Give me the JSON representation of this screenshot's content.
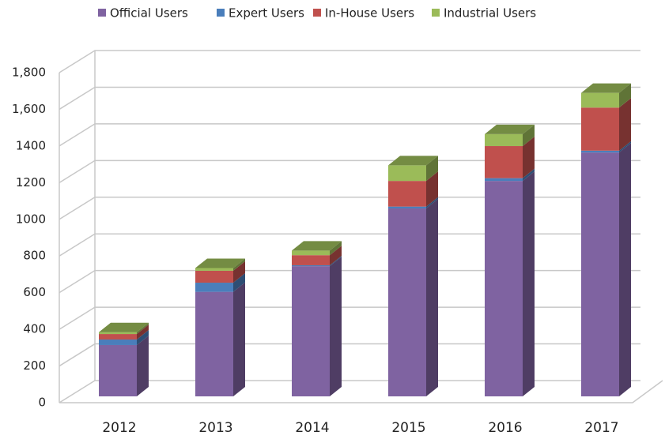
{
  "chart_data": {
    "type": "bar",
    "stacked": true,
    "categories": [
      "2012",
      "2013",
      "2014",
      "2015",
      "2016",
      "2017"
    ],
    "series": [
      {
        "name": "Official Users",
        "color": "#7f63a1",
        "values": [
          280,
          570,
          710,
          1025,
          1175,
          1330
        ]
      },
      {
        "name": "Expert Users",
        "color": "#4a7ebb",
        "values": [
          30,
          50,
          5,
          10,
          15,
          10
        ]
      },
      {
        "name": "In-House Users",
        "color": "#c0504d",
        "values": [
          30,
          65,
          55,
          140,
          175,
          235
        ]
      },
      {
        "name": "Industrial Users",
        "color": "#9bbb59",
        "values": [
          10,
          15,
          25,
          85,
          65,
          80
        ]
      }
    ],
    "ylim": [
      0,
      1800
    ],
    "yticks": [
      0,
      200,
      400,
      600,
      800,
      1000,
      1200,
      1400,
      {
        "value": 1600,
        "label": "1,600"
      },
      {
        "value": 1800,
        "label": "1,800"
      }
    ],
    "grid": true,
    "legend": "top"
  }
}
